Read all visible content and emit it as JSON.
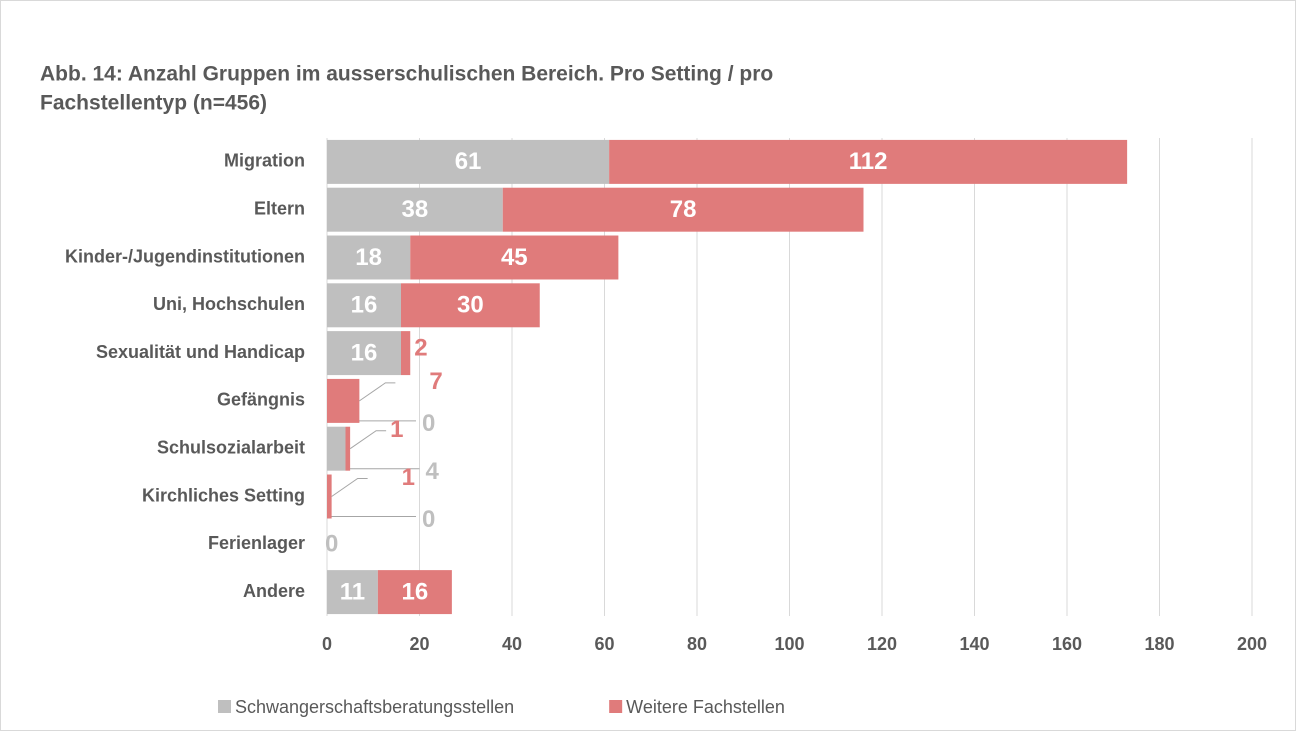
{
  "chart_data": {
    "type": "stacked-bar-horizontal",
    "title": "Abb. 14: Anzahl Gruppen im ausserschulischen Bereich. Pro Setting / pro",
    "subtitle": "Fachstellentyp (n=456)",
    "categories": [
      "Migration",
      "Eltern",
      "Kinder-/Jugendinstitutionen",
      "Uni, Hochschulen",
      "Sexualität und Handicap",
      "Gefängnis",
      "Schulsozialarbeit",
      "Kirchliches Setting",
      "Ferienlager",
      "Andere"
    ],
    "series": [
      {
        "name": "Schwangerschaftsberatungsstellen",
        "color": "#bfbfbf",
        "values": [
          61,
          38,
          18,
          16,
          16,
          0,
          4,
          0,
          0,
          11
        ]
      },
      {
        "name": "Weitere Fachstellen",
        "color": "#e07b7b",
        "values": [
          112,
          78,
          45,
          30,
          2,
          7,
          1,
          1,
          null,
          16
        ]
      }
    ],
    "xlim": [
      0,
      200
    ],
    "xticks": [
      0,
      20,
      40,
      60,
      80,
      100,
      120,
      140,
      160,
      180,
      200
    ],
    "grid": true,
    "legend": "bottom"
  }
}
